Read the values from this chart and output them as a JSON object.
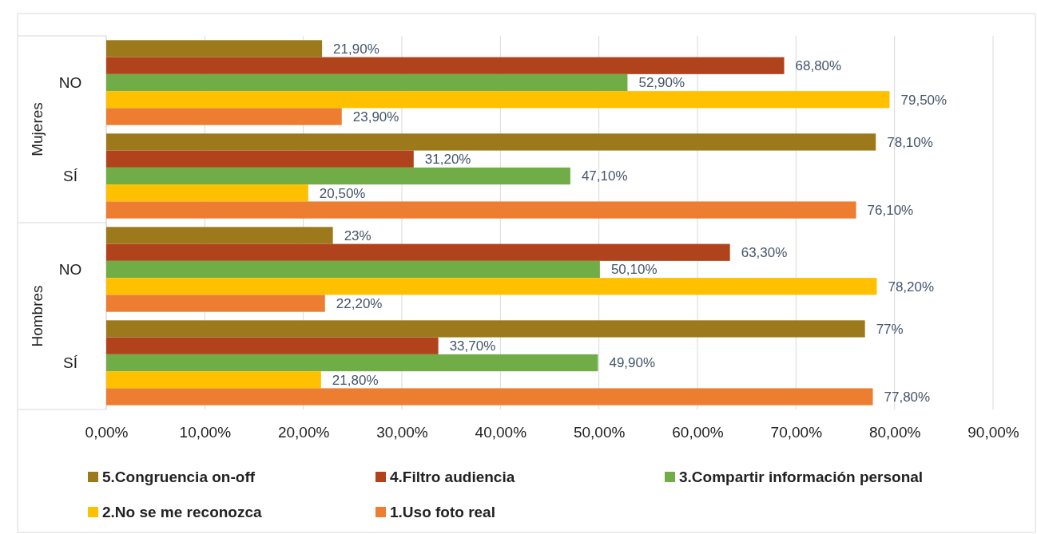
{
  "chart_data": {
    "type": "bar",
    "orientation": "horizontal",
    "categories": [
      "NO",
      "SÍ",
      "NO",
      "SÍ"
    ],
    "annotations": [
      "Mujeres",
      "Hombres"
    ],
    "series": [
      {
        "name": "5.Congruencia on-off",
        "color": "#9c7a1c",
        "values": [
          21.9,
          78.1,
          23,
          77
        ],
        "value_labels": [
          "21,90%",
          "78,10%",
          "23%",
          "77%"
        ]
      },
      {
        "name": "4.Filtro audiencia",
        "color": "#b0431b",
        "values": [
          68.8,
          31.2,
          63.3,
          33.7
        ],
        "value_labels": [
          "68,80%",
          "31,20%",
          "63,30%",
          "33,70%"
        ]
      },
      {
        "name": "3.Compartir información personal",
        "color": "#70ad47",
        "values": [
          52.9,
          47.1,
          50.1,
          49.9
        ],
        "value_labels": [
          "52,90%",
          "47,10%",
          "50,10%",
          "49,90%"
        ]
      },
      {
        "name": "2.No se me reconozca",
        "color": "#ffc000",
        "values": [
          79.5,
          20.5,
          78.2,
          21.8
        ],
        "value_labels": [
          "79,50%",
          "20,50%",
          "78,20%",
          "21,80%"
        ]
      },
      {
        "name": "1.Uso foto real",
        "color": "#ed7d31",
        "values": [
          23.9,
          76.1,
          22.2,
          77.8
        ],
        "value_labels": [
          "23,90%",
          "76,10%",
          "22,20%",
          "77,80%"
        ]
      }
    ],
    "xlim": [
      0,
      90
    ],
    "xticks": [
      {
        "value": 0,
        "label": "0,00%"
      },
      {
        "value": 10,
        "label": "10,00%"
      },
      {
        "value": 20,
        "label": "20,00%"
      },
      {
        "value": 30,
        "label": "30,00%"
      },
      {
        "value": 40,
        "label": "40,00%"
      },
      {
        "value": 50,
        "label": "50,00%"
      },
      {
        "value": 60,
        "label": "60,00%"
      },
      {
        "value": 70,
        "label": "70,00%"
      },
      {
        "value": 80,
        "label": "80,00%"
      },
      {
        "value": 90,
        "label": "90,00%"
      }
    ],
    "grid": "x",
    "legend": "bottom"
  }
}
